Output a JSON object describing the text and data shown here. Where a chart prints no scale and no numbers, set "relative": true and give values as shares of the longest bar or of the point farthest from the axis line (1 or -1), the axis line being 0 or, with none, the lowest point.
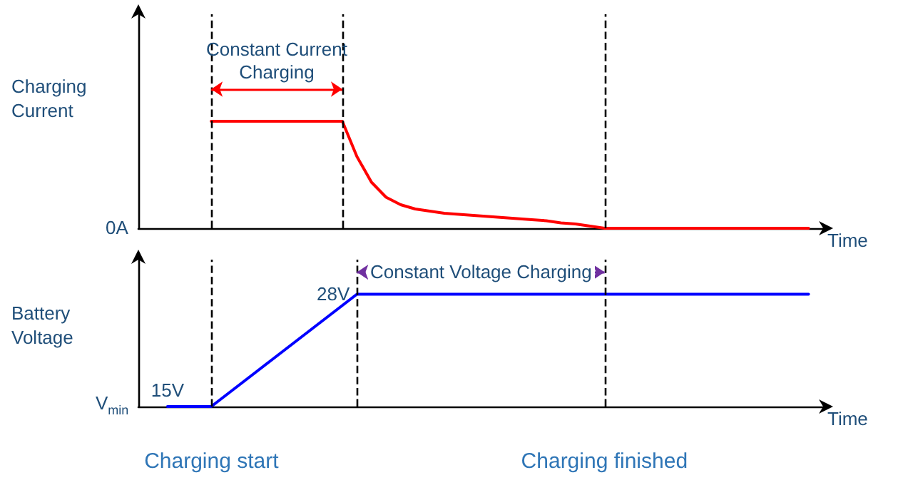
{
  "chart_data": [
    {
      "type": "line",
      "relative": true,
      "ylabel": "Charging Current",
      "xlabel": "Time",
      "grid": "x",
      "categories": [
        null,
        null,
        null,
        null,
        null,
        null,
        null,
        null,
        null,
        null,
        null,
        null,
        null,
        null,
        null,
        null,
        null,
        null,
        null,
        null,
        null,
        null,
        null,
        null,
        null,
        null,
        null,
        null,
        null,
        null,
        null,
        null,
        null,
        null,
        null,
        null,
        null,
        null,
        null,
        null,
        null,
        null,
        null,
        null,
        null,
        null,
        null,
        null
      ],
      "series": [
        {
          "color": "#ff0000",
          "values": [
            null,
            null,
            null,
            null,
            null,
            1,
            1,
            1,
            1,
            1,
            1,
            1,
            1,
            1,
            1,
            0.67,
            0.43,
            0.29,
            0.22,
            0.18,
            0.16,
            0.14,
            0.13,
            0.12,
            0.11,
            0.1,
            0.09,
            0.08,
            0.07,
            0.05,
            0.04,
            0.02,
            0,
            0,
            0,
            0,
            0,
            0,
            0,
            0,
            0,
            0,
            0,
            0,
            0,
            0,
            0,
            null
          ]
        }
      ],
      "annotations": [
        "0A",
        "Constant Current Charging"
      ]
    },
    {
      "type": "line",
      "ylabel": "Battery Voltage",
      "xlabel": "Time",
      "ylim": [
        15,
        32
      ],
      "tick_labels": false,
      "grid": "x",
      "categories": [
        null,
        null,
        null,
        null,
        null,
        null,
        null,
        null,
        null,
        null,
        null,
        null,
        null,
        null,
        null,
        null,
        null,
        null,
        null,
        null,
        null,
        null,
        null,
        null,
        null,
        null,
        null,
        null,
        null,
        null,
        null,
        null,
        null,
        null,
        null,
        null,
        null,
        null,
        null,
        null,
        null,
        null,
        null,
        null,
        null,
        null,
        null,
        null
      ],
      "series": [
        {
          "color": "#0000ff",
          "values": [
            null,
            null,
            15,
            15,
            15,
            15,
            16.3,
            17.6,
            18.9,
            20.2,
            21.5,
            22.8,
            24.1,
            25.4,
            26.7,
            28,
            28,
            28,
            28,
            28,
            28,
            28,
            28,
            28,
            28,
            28,
            28,
            28,
            28,
            28,
            28,
            28,
            28,
            28,
            28,
            28,
            28,
            28,
            28,
            28,
            28,
            28,
            28,
            28,
            28,
            28,
            28,
            null
          ],
          "value_labels": [
            null,
            null,
            "15V",
            null,
            null,
            null,
            null,
            null,
            null,
            null,
            null,
            null,
            null,
            null,
            null,
            "28V",
            null,
            null,
            null,
            null,
            null,
            null,
            null,
            null,
            null,
            null,
            null,
            null,
            null,
            null,
            null,
            null,
            null,
            null,
            null,
            null,
            null,
            null,
            null,
            null,
            null,
            null,
            null,
            null,
            null,
            null,
            null,
            null
          ]
        }
      ],
      "annotations": [
        "V$_{min}$",
        "Constant Voltage Charging",
        "Charging start",
        "Charging finished"
      ]
    }
  ]
}
